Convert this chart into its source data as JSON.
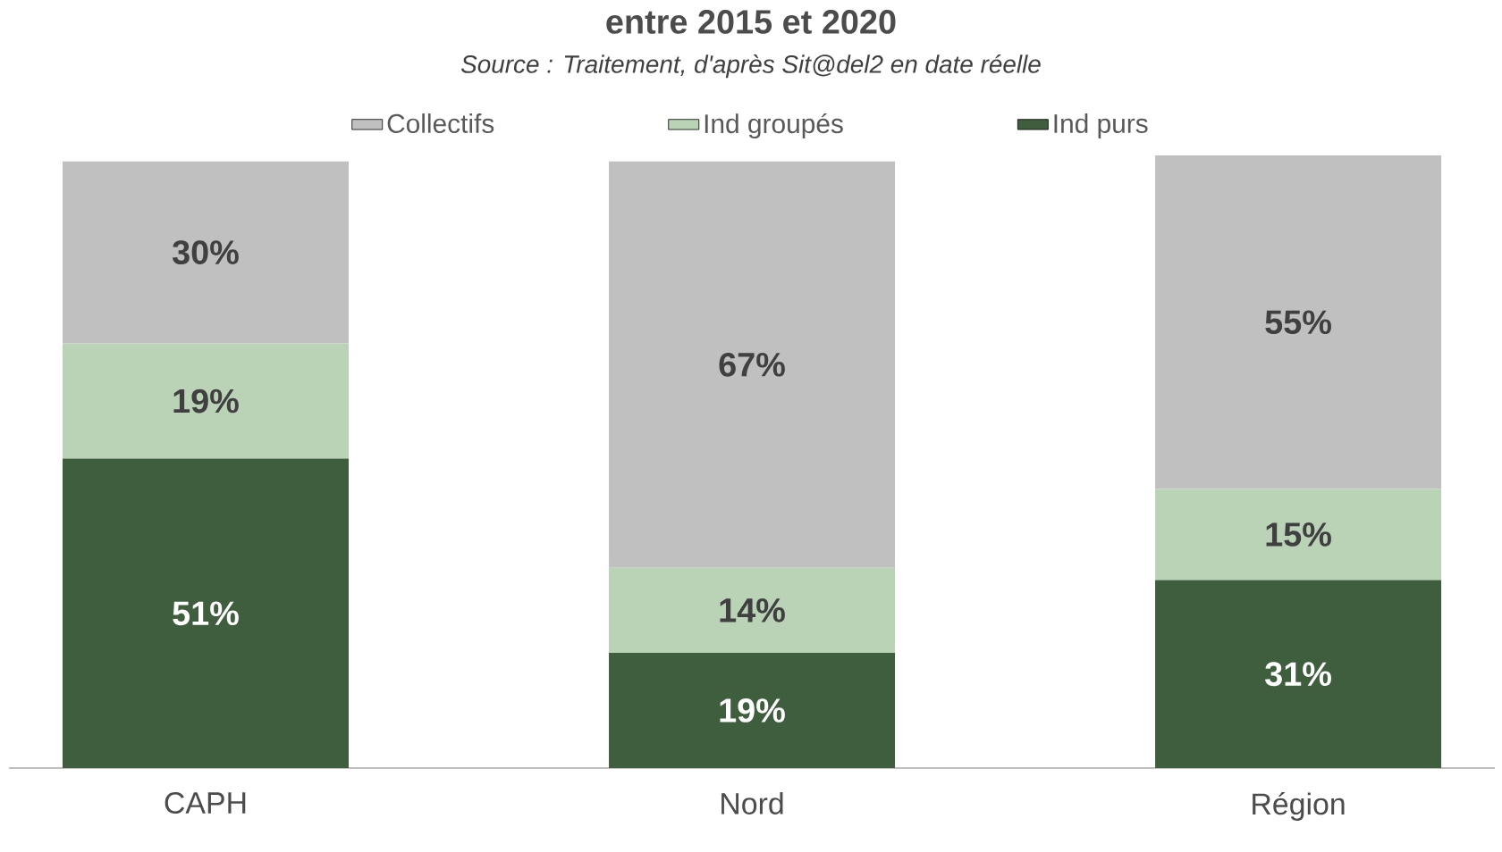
{
  "chart_data": {
    "type": "bar",
    "stacked": true,
    "title": "entre 2015 et 2020",
    "subtitle": "Source : Traitement, d'après Sit@del2 en date réelle",
    "categories": [
      "CAPH",
      "Nord",
      "Région"
    ],
    "series": [
      {
        "name": "Ind purs",
        "color": "#3f5e3e",
        "values": [
          51,
          19,
          31
        ],
        "value_labels": [
          "51%",
          "19%",
          "31%"
        ]
      },
      {
        "name": "Ind groupés",
        "color": "#bad3b7",
        "values": [
          19,
          14,
          15
        ],
        "value_labels": [
          "19%",
          "14%",
          "15%"
        ]
      },
      {
        "name": "Collectifs",
        "color": "#c0c0c0",
        "values": [
          30,
          67,
          55
        ],
        "value_labels": [
          "30%",
          "67%",
          "55%"
        ]
      }
    ],
    "legend": "top"
  }
}
